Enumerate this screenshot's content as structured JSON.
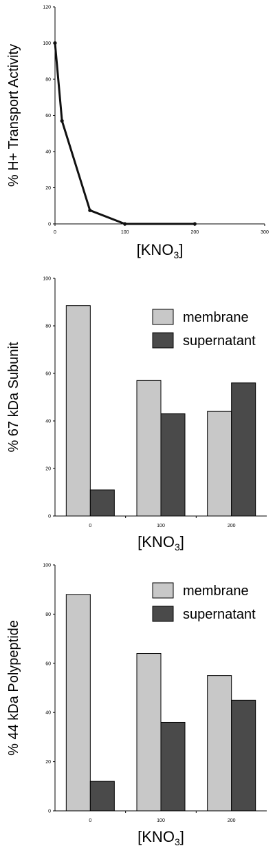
{
  "chart_data": [
    {
      "type": "line",
      "xlabel": "[KNO",
      "xlabel_sub": "3",
      "xlabel_end": "]",
      "ylabel": "% H+ Transport Activity",
      "xlim": [
        0,
        300
      ],
      "ylim": [
        0,
        120
      ],
      "xticks": [
        "0",
        "100",
        "200",
        "300"
      ],
      "yticks": [
        "0",
        "20",
        "40",
        "60",
        "80",
        "100",
        "120"
      ],
      "series": [
        {
          "x": [
            0,
            10,
            50,
            100,
            200
          ],
          "y": [
            100,
            57,
            7.5,
            0,
            0
          ]
        }
      ],
      "color": "#111111"
    },
    {
      "type": "bar",
      "xlabel": "[KNO",
      "xlabel_sub": "3",
      "xlabel_end": "]",
      "ylabel": "% 67 kDa Subunit",
      "categories": [
        "0",
        "100",
        "200"
      ],
      "ylim": [
        0,
        100
      ],
      "yticks": [
        "0",
        "20",
        "40",
        "60",
        "80",
        "100"
      ],
      "series": [
        {
          "name": "membrane",
          "values": [
            88.5,
            57,
            44
          ],
          "color": "#c8c8c8"
        },
        {
          "name": "supernatant",
          "values": [
            11,
            43,
            56
          ],
          "color": "#4a4a4a"
        }
      ]
    },
    {
      "type": "bar",
      "xlabel": "[KNO",
      "xlabel_sub": "3",
      "xlabel_end": "]",
      "ylabel": "% 44 kDa Polypeptide",
      "categories": [
        "0",
        "100",
        "200"
      ],
      "ylim": [
        0,
        100
      ],
      "yticks": [
        "0",
        "20",
        "40",
        "60",
        "80",
        "100"
      ],
      "series": [
        {
          "name": "membrane",
          "values": [
            88,
            64,
            55
          ],
          "color": "#c8c8c8"
        },
        {
          "name": "supernatant",
          "values": [
            12,
            36,
            45
          ],
          "color": "#4a4a4a"
        }
      ]
    }
  ]
}
